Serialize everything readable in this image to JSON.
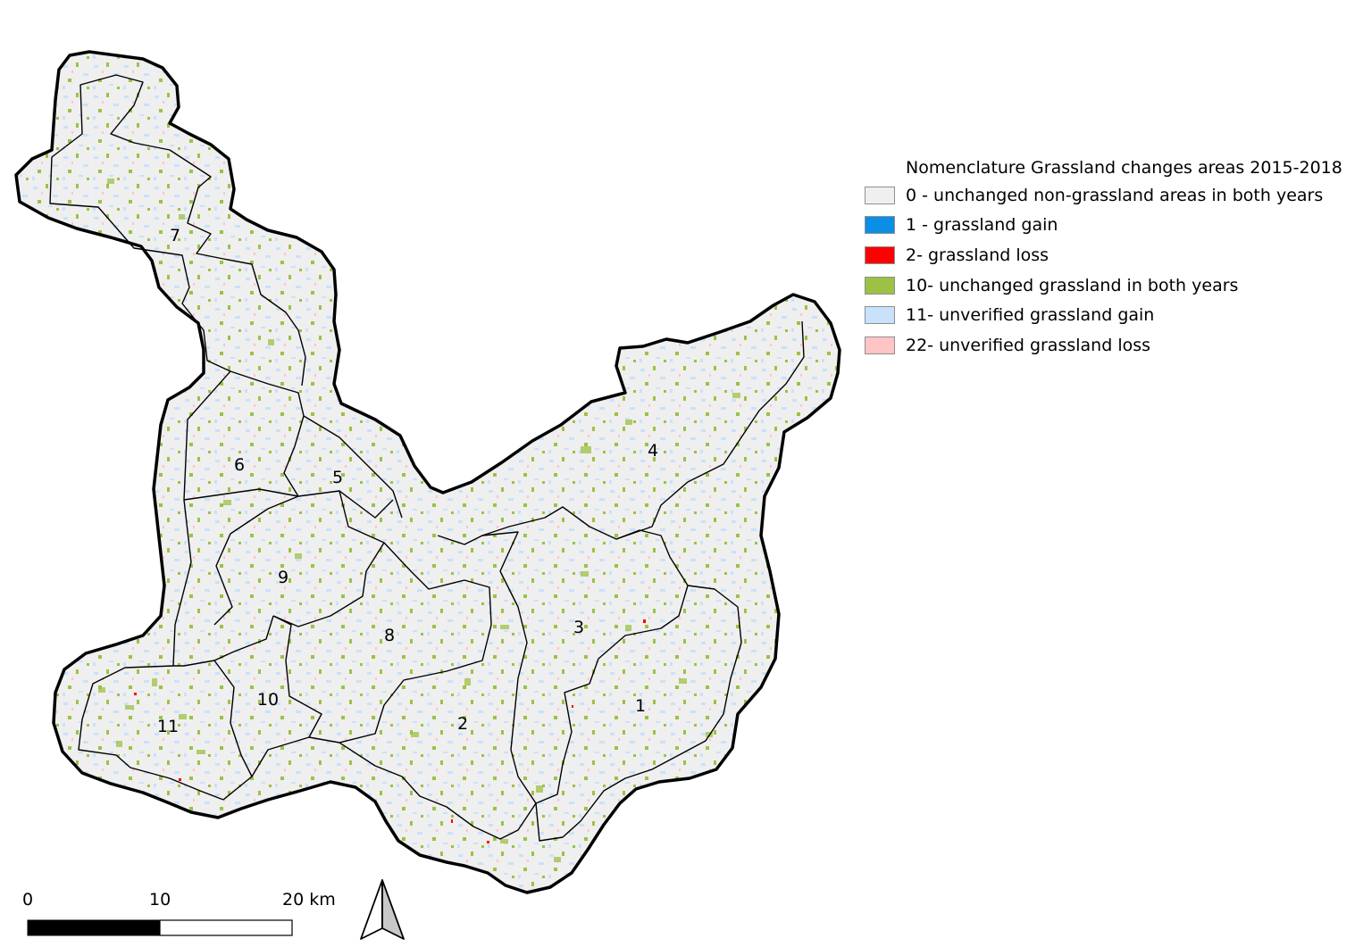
{
  "legend": {
    "title": "Nomenclature Grassland changes areas 2015-2018",
    "items": [
      {
        "label": "0 - unchanged non-grassland areas in both years",
        "color": "#efefef"
      },
      {
        "label": "1 - grassland gain",
        "color": "#0a8ee6"
      },
      {
        "label": "2- grassland loss",
        "color": "#ff0000"
      },
      {
        "label": "10- unchanged grassland in both years",
        "color": "#9dc144"
      },
      {
        "label": "11- unverified grassland gain",
        "color": "#c8e2fa"
      },
      {
        "label": "22- unverified grassland loss",
        "color": "#ffc4c4"
      }
    ]
  },
  "subbasins": [
    "1",
    "2",
    "3",
    "4",
    "5",
    "6",
    "7",
    "8",
    "9",
    "10",
    "11"
  ],
  "scale_bar": {
    "ticks": [
      "0",
      "10",
      "20 km"
    ]
  },
  "north_arrow": {
    "icon": "north-arrow-icon"
  }
}
